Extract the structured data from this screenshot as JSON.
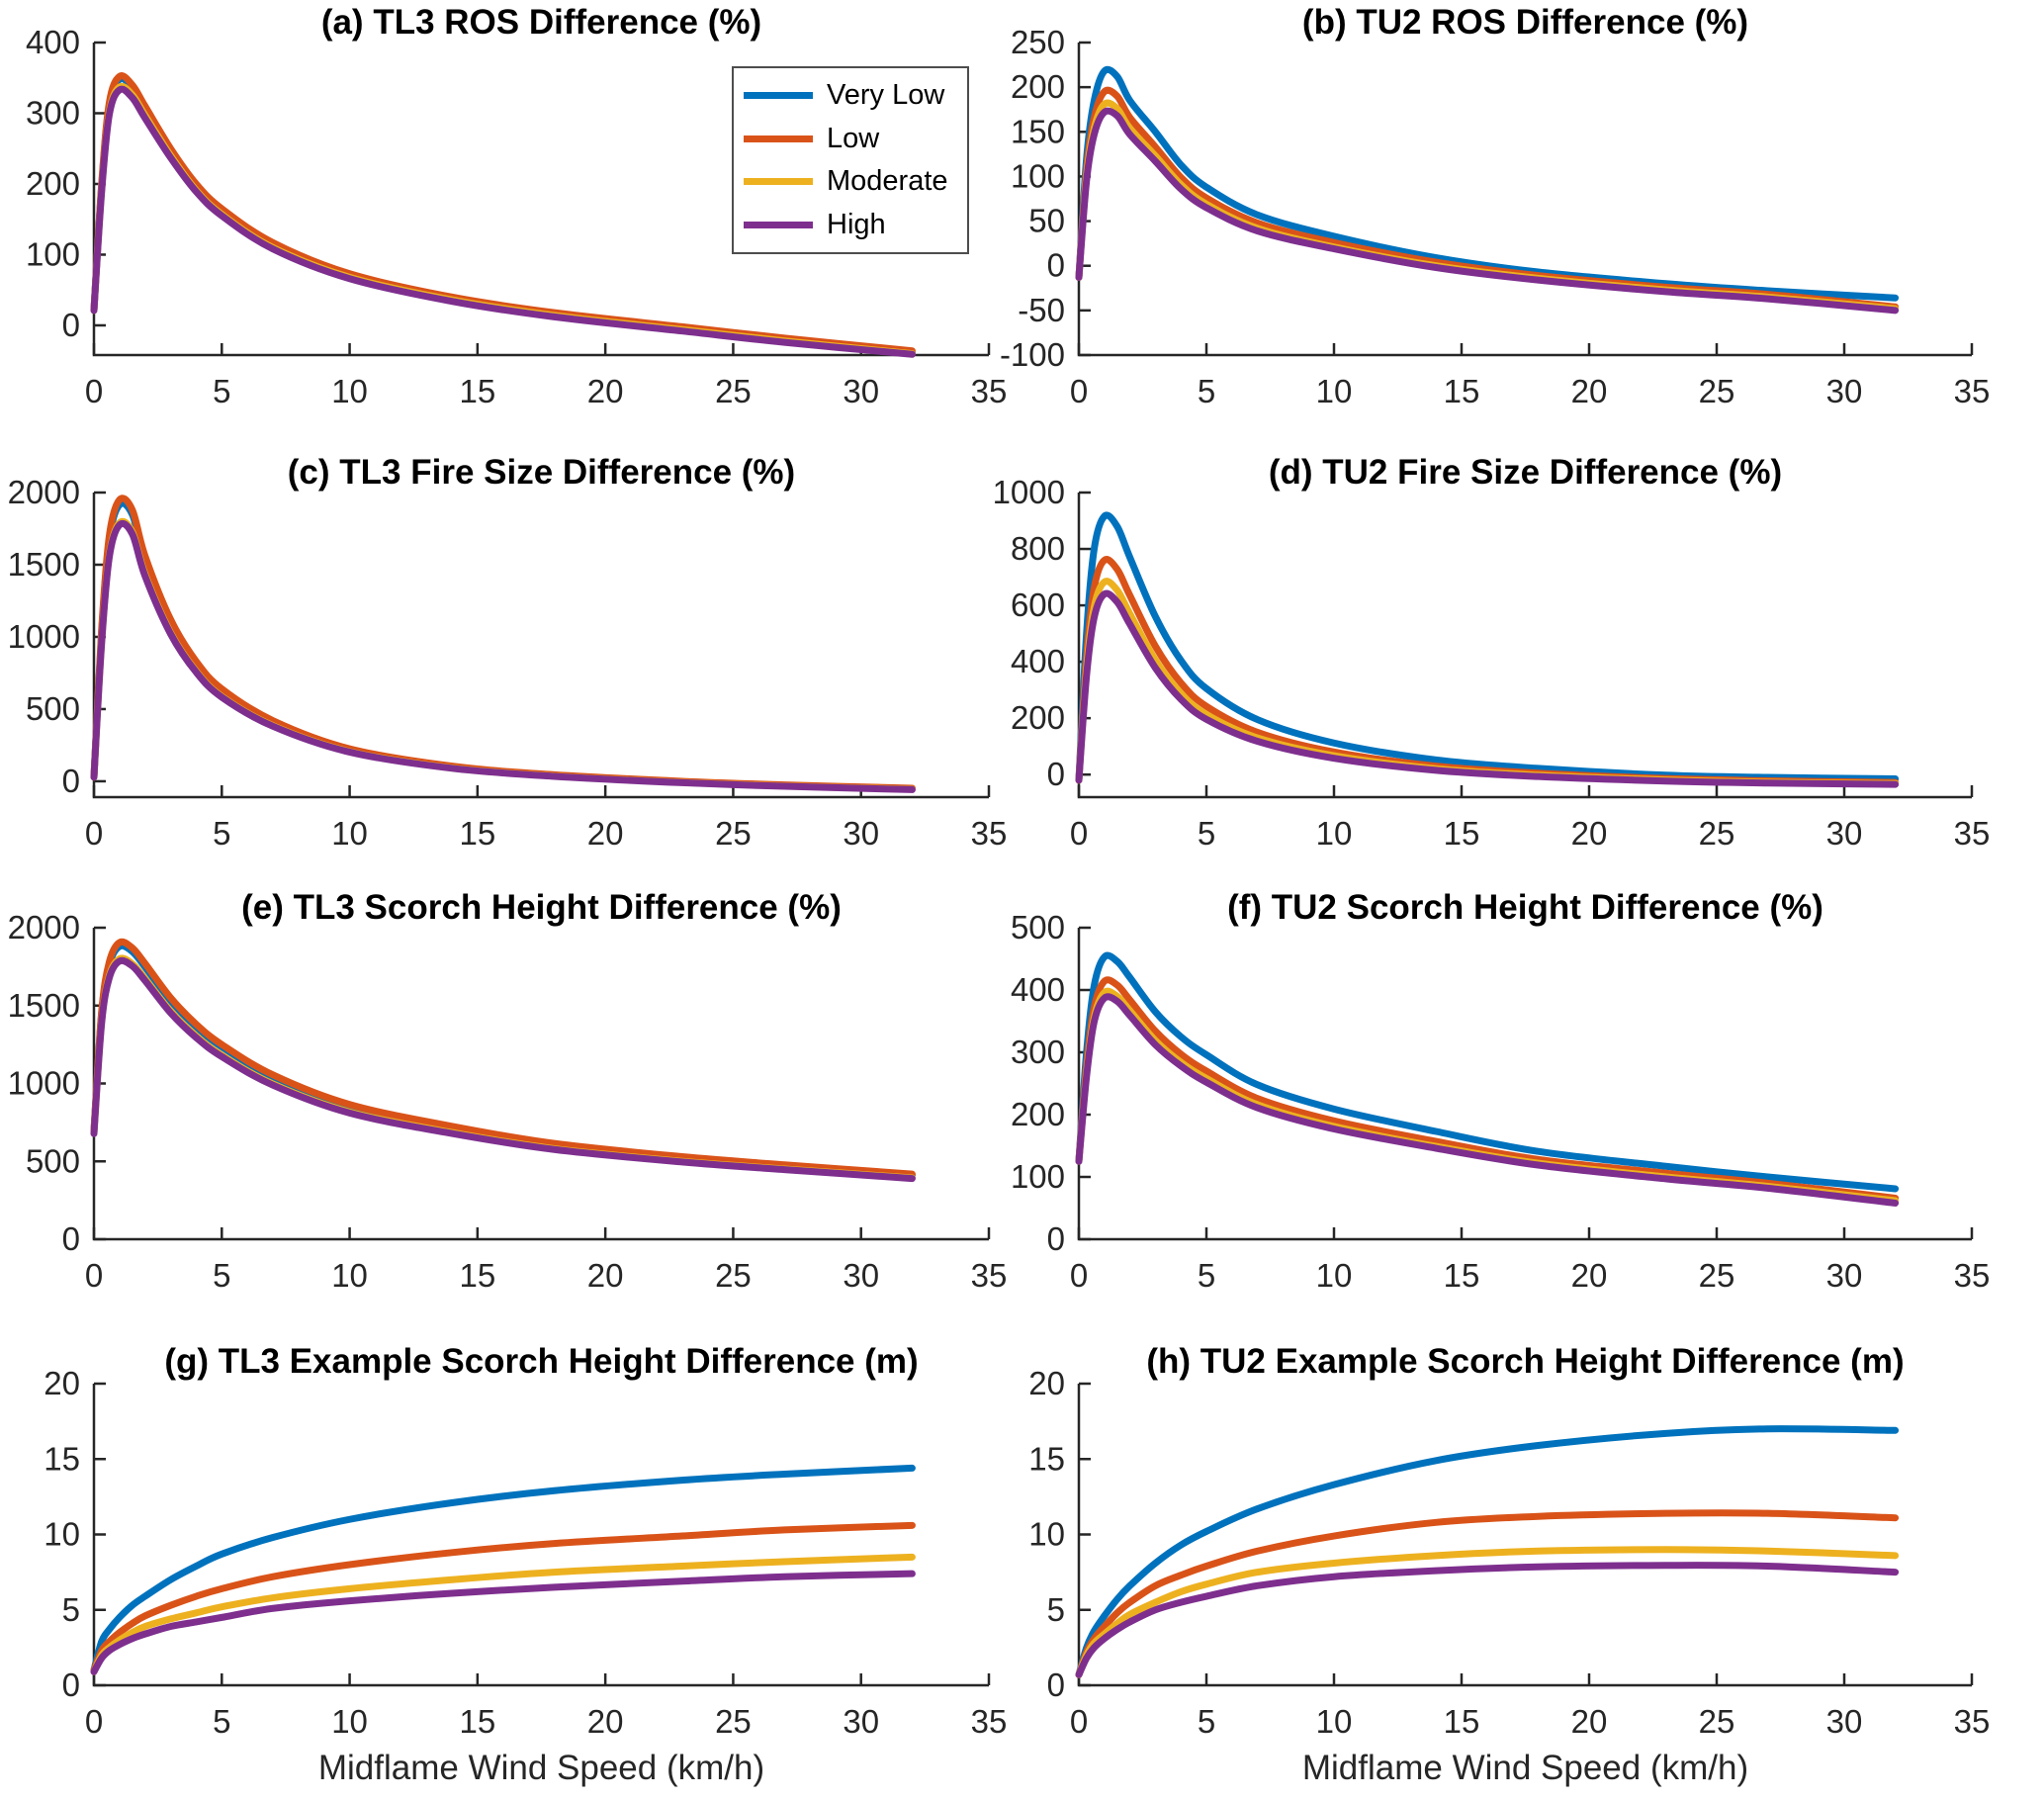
{
  "figure": {
    "background": "#ffffff",
    "axis_color": "#262626",
    "xlabel": "Midflame Wind Speed (km/h)",
    "x_ticks": [
      0,
      5,
      10,
      15,
      20,
      25,
      30,
      35
    ],
    "legend": {
      "items": [
        {
          "label": "Very Low",
          "color": "#0072BD"
        },
        {
          "label": "Low",
          "color": "#D95319"
        },
        {
          "label": "Moderate",
          "color": "#EDB120"
        },
        {
          "label": "High",
          "color": "#7E2F8E"
        }
      ],
      "position": "upper right of panel (a)"
    }
  },
  "chart_data": [
    {
      "id": "a",
      "type": "line",
      "title": "(a) TL3 ROS Difference (%)",
      "xlim": [
        0,
        35
      ],
      "ylim": [
        -42,
        400
      ],
      "yticks": [
        0,
        100,
        200,
        300,
        400
      ],
      "x": [
        0,
        0.3,
        0.6,
        1,
        1.5,
        2,
        3,
        4,
        5,
        7,
        10,
        14,
        18,
        23,
        27,
        32
      ],
      "series": [
        {
          "name": "Very Low",
          "color": "#0072BD",
          "values": [
            22,
            197,
            311,
            348,
            336,
            306,
            247,
            197,
            162,
            114,
            71,
            38,
            16,
            -4,
            -20,
            -38
          ]
        },
        {
          "name": "Low",
          "color": "#D95319",
          "values": [
            22,
            200,
            315,
            352,
            340,
            310,
            250,
            200,
            165,
            117,
            73,
            40,
            18,
            -2,
            -18,
            -36
          ]
        },
        {
          "name": "Moderate",
          "color": "#EDB120",
          "values": [
            21,
            191,
            301,
            337,
            326,
            297,
            240,
            191,
            157,
            110,
            68,
            36,
            14,
            -6,
            -22,
            -40
          ]
        },
        {
          "name": "High",
          "color": "#7E2F8E",
          "values": [
            21,
            189,
            298,
            333,
            322,
            293,
            237,
            189,
            155,
            108,
            66,
            34,
            12,
            -8,
            -24,
            -41
          ]
        }
      ]
    },
    {
      "id": "b",
      "type": "line",
      "title": "(b) TU2 ROS Difference (%)",
      "xlim": [
        0,
        35
      ],
      "ylim": [
        -100,
        250
      ],
      "yticks": [
        -100,
        -50,
        0,
        50,
        100,
        150,
        200,
        250
      ],
      "x": [
        0,
        0.3,
        0.6,
        1,
        1.5,
        2,
        3,
        4,
        5,
        7,
        10,
        14,
        18,
        23,
        27,
        32
      ],
      "series": [
        {
          "name": "Very Low",
          "color": "#0072BD",
          "values": [
            -13,
            120,
            185,
            218,
            212,
            185,
            150,
            113,
            88,
            57,
            33,
            9,
            -7,
            -20,
            -28,
            -36
          ]
        },
        {
          "name": "Low",
          "color": "#D95319",
          "values": [
            -13,
            107,
            166,
            195,
            190,
            166,
            133,
            99,
            76,
            48,
            26,
            4,
            -11,
            -24,
            -32,
            -46
          ]
        },
        {
          "name": "Moderate",
          "color": "#EDB120",
          "values": [
            -13,
            100,
            154,
            181,
            176,
            154,
            123,
            91,
            69,
            42,
            21,
            0,
            -14,
            -27,
            -35,
            -48
          ]
        },
        {
          "name": "High",
          "color": "#7E2F8E",
          "values": [
            -13,
            95,
            147,
            172,
            168,
            147,
            117,
            86,
            65,
            39,
            19,
            -2,
            -16,
            -29,
            -37,
            -50
          ]
        }
      ]
    },
    {
      "id": "c",
      "type": "line",
      "title": "(c) TL3 Fire Size Difference (%)",
      "xlim": [
        0,
        35
      ],
      "ylim": [
        -110,
        2000
      ],
      "yticks": [
        0,
        500,
        1000,
        1500,
        2000
      ],
      "x": [
        0,
        0.3,
        0.6,
        1,
        1.5,
        2,
        3,
        4,
        5,
        7,
        10,
        14,
        18,
        23,
        27,
        32
      ],
      "series": [
        {
          "name": "Very Low",
          "color": "#0072BD",
          "values": [
            30,
            1030,
            1675,
            1915,
            1848,
            1533,
            1100,
            815,
            628,
            412,
            220,
            101,
            42,
            -3,
            -28,
            -51
          ]
        },
        {
          "name": "Low",
          "color": "#D95319",
          "values": [
            30,
            1050,
            1700,
            1950,
            1880,
            1560,
            1120,
            830,
            640,
            420,
            225,
            105,
            45,
            0,
            -25,
            -48
          ]
        },
        {
          "name": "Moderate",
          "color": "#EDB120",
          "values": [
            28,
            965,
            1565,
            1790,
            1727,
            1433,
            1028,
            762,
            587,
            385,
            205,
            92,
            36,
            -8,
            -33,
            -56
          ]
        },
        {
          "name": "High",
          "color": "#7E2F8E",
          "values": [
            28,
            957,
            1552,
            1775,
            1713,
            1421,
            1020,
            755,
            582,
            381,
            202,
            90,
            34,
            -10,
            -35,
            -58
          ]
        }
      ]
    },
    {
      "id": "d",
      "type": "line",
      "title": "(d) TU2 Fire Size Difference (%)",
      "xlim": [
        0,
        35
      ],
      "ylim": [
        -80,
        1000
      ],
      "yticks": [
        0,
        200,
        400,
        600,
        800,
        1000
      ],
      "x": [
        0,
        0.3,
        0.6,
        1,
        1.5,
        2,
        3,
        4,
        5,
        7,
        10,
        14,
        18,
        23,
        27,
        32
      ],
      "series": [
        {
          "name": "Very Low",
          "color": "#0072BD",
          "values": [
            -20,
            500,
            800,
            916,
            880,
            770,
            560,
            405,
            305,
            195,
            112,
            52,
            22,
            -2,
            -10,
            -15
          ]
        },
        {
          "name": "Low",
          "color": "#D95319",
          "values": [
            -20,
            415,
            662,
            760,
            728,
            635,
            455,
            325,
            242,
            150,
            80,
            30,
            5,
            -14,
            -22,
            -28
          ]
        },
        {
          "name": "Moderate",
          "color": "#EDB120",
          "values": [
            -20,
            373,
            594,
            683,
            654,
            570,
            406,
            288,
            213,
            130,
            67,
            21,
            -2,
            -19,
            -27,
            -32
          ]
        },
        {
          "name": "High",
          "color": "#7E2F8E",
          "values": [
            -20,
            350,
            557,
            640,
            612,
            533,
            378,
            267,
            196,
            118,
            58,
            15,
            -7,
            -23,
            -30,
            -35
          ]
        }
      ]
    },
    {
      "id": "e",
      "type": "line",
      "title": "(e) TL3 Scorch Height Difference (%)",
      "xlim": [
        0,
        35
      ],
      "ylim": [
        0,
        2000
      ],
      "yticks": [
        0,
        500,
        1000,
        1500,
        2000
      ],
      "x": [
        0,
        0.3,
        0.6,
        1,
        1.5,
        2,
        3,
        4,
        5,
        7,
        10,
        14,
        18,
        23,
        27,
        32
      ],
      "series": [
        {
          "name": "Very Low",
          "color": "#0072BD",
          "values": [
            695,
            1448,
            1763,
            1880,
            1847,
            1748,
            1531,
            1363,
            1235,
            1042,
            854,
            716,
            607,
            523,
            471,
            412
          ]
        },
        {
          "name": "Low",
          "color": "#D95319",
          "values": [
            700,
            1460,
            1780,
            1905,
            1870,
            1770,
            1550,
            1380,
            1250,
            1055,
            865,
            725,
            615,
            530,
            478,
            418
          ]
        },
        {
          "name": "Moderate",
          "color": "#EDB120",
          "values": [
            680,
            1395,
            1690,
            1800,
            1768,
            1673,
            1465,
            1305,
            1182,
            997,
            817,
            685,
            581,
            500,
            451,
            394
          ]
        },
        {
          "name": "High",
          "color": "#7E2F8E",
          "values": [
            678,
            1387,
            1678,
            1785,
            1754,
            1660,
            1453,
            1294,
            1172,
            989,
            810,
            679,
            576,
            496,
            447,
            390
          ]
        }
      ]
    },
    {
      "id": "f",
      "type": "line",
      "title": "(f) TU2 Scorch Height Difference (%)",
      "xlim": [
        0,
        35
      ],
      "ylim": [
        0,
        500
      ],
      "yticks": [
        0,
        100,
        200,
        300,
        400,
        500
      ],
      "x": [
        0,
        0.3,
        0.6,
        1,
        1.5,
        2,
        3,
        4,
        5,
        7,
        10,
        14,
        18,
        23,
        27,
        32
      ],
      "series": [
        {
          "name": "Very Low",
          "color": "#0072BD",
          "values": [
            126,
            300,
            407,
            453,
            446,
            420,
            365,
            325,
            296,
            248,
            209,
            173,
            141,
            117,
            100,
            81
          ]
        },
        {
          "name": "Low",
          "color": "#D95319",
          "values": [
            126,
            278,
            372,
            414,
            408,
            384,
            334,
            297,
            270,
            226,
            190,
            157,
            128,
            106,
            90,
            66
          ]
        },
        {
          "name": "Moderate",
          "color": "#EDB120",
          "values": [
            125,
            266,
            356,
            396,
            390,
            367,
            319,
            284,
            258,
            216,
            181,
            149,
            122,
            100,
            85,
            62
          ]
        },
        {
          "name": "High",
          "color": "#7E2F8E",
          "values": [
            125,
            261,
            349,
            387,
            382,
            359,
            312,
            278,
            252,
            211,
            177,
            146,
            119,
            97,
            82,
            58
          ]
        }
      ]
    },
    {
      "id": "g",
      "type": "line",
      "title": "(g) TL3 Example Scorch Height Difference (m)",
      "xlim": [
        0,
        35
      ],
      "ylim": [
        0,
        20
      ],
      "yticks": [
        0,
        5,
        10,
        15,
        20
      ],
      "x": [
        0,
        0.3,
        0.6,
        1,
        1.5,
        2,
        3,
        4,
        5,
        7,
        10,
        14,
        18,
        23,
        27,
        32
      ],
      "series": [
        {
          "name": "Very Low",
          "color": "#0072BD",
          "values": [
            1.0,
            2.9,
            3.7,
            4.5,
            5.3,
            5.9,
            7.0,
            7.9,
            8.7,
            9.8,
            11.0,
            12.1,
            12.9,
            13.6,
            14.0,
            14.4
          ]
        },
        {
          "name": "Low",
          "color": "#D95319",
          "values": [
            1.0,
            2.3,
            2.9,
            3.5,
            4.1,
            4.6,
            5.3,
            5.9,
            6.4,
            7.2,
            8.0,
            8.8,
            9.4,
            9.9,
            10.3,
            10.6
          ]
        },
        {
          "name": "Moderate",
          "color": "#EDB120",
          "values": [
            0.9,
            2.0,
            2.5,
            3.0,
            3.5,
            3.9,
            4.4,
            4.8,
            5.2,
            5.8,
            6.4,
            7.0,
            7.5,
            7.9,
            8.2,
            8.5
          ]
        },
        {
          "name": "High",
          "color": "#7E2F8E",
          "values": [
            0.9,
            1.8,
            2.3,
            2.7,
            3.1,
            3.4,
            3.9,
            4.2,
            4.5,
            5.1,
            5.6,
            6.1,
            6.5,
            6.9,
            7.2,
            7.4
          ]
        }
      ]
    },
    {
      "id": "h",
      "type": "line",
      "title": "(h) TU2 Example Scorch Height Difference (m)",
      "xlim": [
        0,
        35
      ],
      "ylim": [
        0,
        20
      ],
      "yticks": [
        0,
        5,
        10,
        15,
        20
      ],
      "x": [
        0,
        0.3,
        0.6,
        1,
        1.5,
        2,
        3,
        4,
        5,
        7,
        10,
        14,
        18,
        23,
        27,
        32
      ],
      "series": [
        {
          "name": "Very Low",
          "color": "#0072BD",
          "values": [
            0.7,
            2.5,
            3.6,
            4.6,
            5.7,
            6.6,
            8.1,
            9.3,
            10.2,
            11.7,
            13.3,
            14.9,
            15.9,
            16.7,
            17.0,
            16.9
          ]
        },
        {
          "name": "Low",
          "color": "#D95319",
          "values": [
            0.7,
            2.2,
            3.1,
            3.9,
            4.8,
            5.5,
            6.6,
            7.3,
            7.9,
            8.9,
            9.9,
            10.8,
            11.2,
            11.4,
            11.4,
            11.1
          ]
        },
        {
          "name": "Moderate",
          "color": "#EDB120",
          "values": [
            0.7,
            2.0,
            2.8,
            3.4,
            4.1,
            4.7,
            5.5,
            6.2,
            6.7,
            7.5,
            8.1,
            8.6,
            8.9,
            9.0,
            8.9,
            8.6
          ]
        },
        {
          "name": "High",
          "color": "#7E2F8E",
          "values": [
            0.7,
            1.8,
            2.5,
            3.1,
            3.7,
            4.2,
            5.0,
            5.5,
            5.9,
            6.6,
            7.2,
            7.6,
            7.85,
            7.95,
            7.9,
            7.5
          ]
        }
      ]
    }
  ]
}
